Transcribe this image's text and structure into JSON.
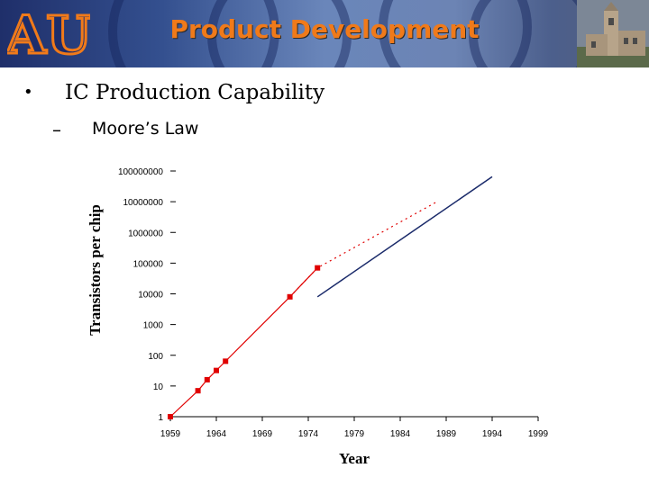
{
  "slide": {
    "title": "Product Development",
    "bullet": "IC Production Capability",
    "sub_bullet": "Moore’s Law",
    "bullet_marker": "•",
    "sub_marker": "–"
  },
  "colors": {
    "title": "#f07a1a",
    "banner_dark": "#1f2f6a",
    "banner_light": "#6a86ba",
    "logo_orange": "#f07a1a",
    "logo_navy": "#1d2d6b",
    "data_red": "#e00000",
    "trend_navy": "#1a2a6a"
  },
  "chart_data": {
    "type": "scatter",
    "title": "",
    "xlabel": "Year",
    "ylabel": "Transistors per chip",
    "x_ticks": [
      1959,
      1964,
      1969,
      1974,
      1979,
      1984,
      1989,
      1994,
      1999
    ],
    "xlim": [
      1959,
      1999
    ],
    "y_scale": "log",
    "y_ticks": [
      "1",
      "10",
      "100",
      "1000",
      "10000",
      "100000",
      "1000000",
      "10000000",
      "100000000"
    ],
    "ylim": [
      1,
      100000000
    ],
    "grid": false,
    "series": [
      {
        "style": "markers with solid line",
        "color": "#e00000",
        "points": [
          [
            1959,
            1
          ],
          [
            1962,
            7
          ],
          [
            1963,
            16
          ],
          [
            1964,
            32
          ],
          [
            1965,
            64
          ],
          [
            1972,
            8000
          ],
          [
            1975,
            70000
          ]
        ]
      },
      {
        "style": "dotted line",
        "color": "#e00000",
        "points": [
          [
            1972,
            8000
          ],
          [
            1975,
            70000
          ],
          [
            1988,
            10000000
          ]
        ]
      },
      {
        "style": "solid line",
        "color": "#1a2a6a",
        "points": [
          [
            1975,
            8000
          ],
          [
            1994,
            65000000
          ]
        ]
      }
    ]
  }
}
